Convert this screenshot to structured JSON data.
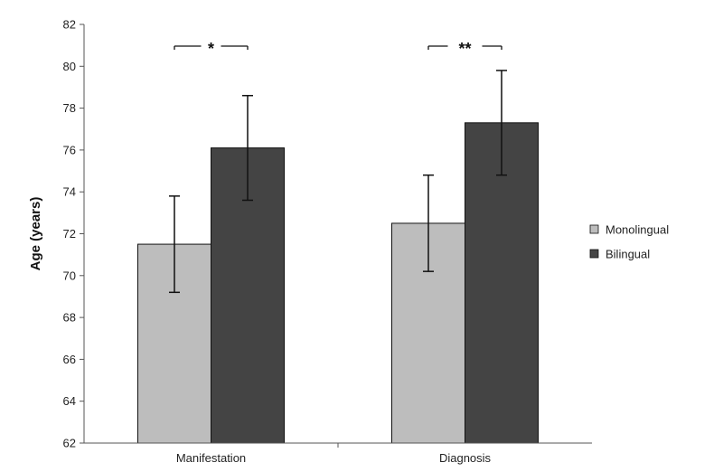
{
  "chart_data": {
    "type": "bar",
    "title": "",
    "xlabel": "",
    "ylabel": "Age (years)",
    "ylim": [
      62,
      82
    ],
    "yticks": [
      62,
      64,
      66,
      68,
      70,
      72,
      74,
      76,
      78,
      80,
      82
    ],
    "categories": [
      "Manifestation",
      "Diagnosis"
    ],
    "series": [
      {
        "name": "Monolingual",
        "values": [
          71.5,
          72.5
        ],
        "error": [
          2.3,
          2.3
        ],
        "color": "#bdbdbd"
      },
      {
        "name": "Bilingual",
        "values": [
          76.1,
          77.3
        ],
        "error": [
          2.5,
          2.5
        ],
        "color": "#444444"
      }
    ],
    "significance": [
      "*",
      "**"
    ],
    "legend_position": "right",
    "grid": false
  }
}
